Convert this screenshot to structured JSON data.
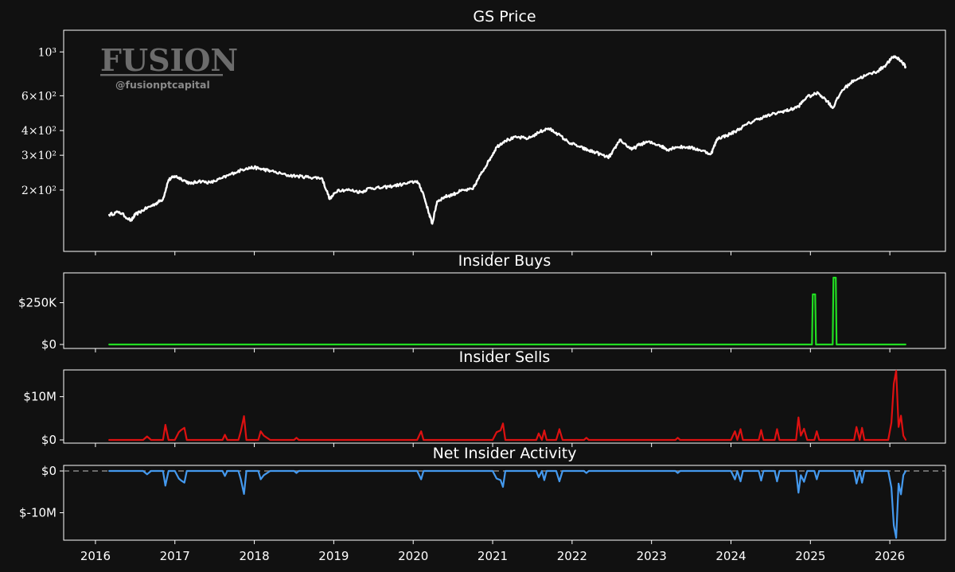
{
  "watermark": {
    "brand": "FUSION",
    "handle": "@fusionptcapital"
  },
  "chart_data": [
    {
      "type": "line",
      "title": "GS Price",
      "yscale": "log",
      "ylim": [
        120,
        1050
      ],
      "yticks": [
        {
          "value": 200,
          "label": "2×10²"
        },
        {
          "value": 300,
          "label": "3×10²"
        },
        {
          "value": 400,
          "label": "4×10²"
        },
        {
          "value": 600,
          "label": "6×10²"
        },
        {
          "value": 1000,
          "label": "10³"
        }
      ],
      "color": "#ffffff",
      "x": [
        2016.17,
        2016.3,
        2016.45,
        2016.5,
        2016.62,
        2016.75,
        2016.85,
        2016.92,
        2017.0,
        2017.08,
        2017.2,
        2017.3,
        2017.45,
        2017.6,
        2017.75,
        2017.9,
        2018.0,
        2018.1,
        2018.2,
        2018.4,
        2018.55,
        2018.7,
        2018.85,
        2018.95,
        2019.05,
        2019.2,
        2019.35,
        2019.45,
        2019.6,
        2019.75,
        2019.9,
        2020.05,
        2020.12,
        2020.2,
        2020.24,
        2020.3,
        2020.4,
        2020.5,
        2020.6,
        2020.75,
        2020.85,
        2020.95,
        2021.05,
        2021.15,
        2021.3,
        2021.45,
        2021.6,
        2021.7,
        2021.8,
        2021.95,
        2022.1,
        2022.2,
        2022.3,
        2022.45,
        2022.5,
        2022.6,
        2022.75,
        2022.85,
        2022.95,
        2023.1,
        2023.2,
        2023.3,
        2023.45,
        2023.6,
        2023.75,
        2023.83,
        2023.95,
        2024.05,
        2024.2,
        2024.35,
        2024.5,
        2024.65,
        2024.75,
        2024.85,
        2024.95,
        2025.1,
        2025.22,
        2025.28,
        2025.4,
        2025.55,
        2025.7,
        2025.85,
        2025.95,
        2026.05,
        2026.12,
        2026.2
      ],
      "values": [
        150,
        155,
        140,
        150,
        160,
        170,
        180,
        225,
        235,
        228,
        215,
        222,
        218,
        230,
        245,
        258,
        260,
        255,
        250,
        238,
        235,
        232,
        230,
        180,
        200,
        200,
        195,
        205,
        205,
        210,
        215,
        222,
        195,
        152,
        135,
        175,
        185,
        190,
        198,
        202,
        240,
        280,
        330,
        355,
        370,
        365,
        395,
        410,
        390,
        350,
        330,
        318,
        310,
        292,
        305,
        360,
        320,
        340,
        350,
        338,
        320,
        330,
        330,
        320,
        305,
        365,
        378,
        395,
        430,
        460,
        480,
        500,
        510,
        530,
        590,
        620,
        560,
        520,
        640,
        720,
        760,
        800,
        860,
        950,
        920,
        840
      ]
    },
    {
      "type": "line",
      "title": "Insider Buys",
      "ylim": [
        0,
        400000
      ],
      "yticks": [
        {
          "value": 0,
          "label": "$0"
        },
        {
          "value": 250000,
          "label": "$250K"
        }
      ],
      "color": "#22dd22",
      "x": [
        2016.17,
        2025.02,
        2025.03,
        2025.06,
        2025.07,
        2025.28,
        2025.29,
        2025.32,
        2025.33,
        2026.2
      ],
      "values": [
        0,
        0,
        300000,
        300000,
        0,
        0,
        400000,
        400000,
        0,
        0
      ]
    },
    {
      "type": "line",
      "title": "Insider Sells",
      "ylim": [
        0,
        16000000
      ],
      "yticks": [
        {
          "value": 0,
          "label": "$0"
        },
        {
          "value": 10000000,
          "label": "$10M"
        }
      ],
      "color": "#dd1111",
      "x": [
        2016.17,
        2016.6,
        2016.65,
        2016.7,
        2016.85,
        2016.88,
        2016.92,
        2017.0,
        2017.05,
        2017.08,
        2017.12,
        2017.15,
        2017.2,
        2017.6,
        2017.63,
        2017.66,
        2017.8,
        2017.83,
        2017.87,
        2017.9,
        2017.93,
        2018.05,
        2018.08,
        2018.12,
        2018.2,
        2018.5,
        2018.53,
        2018.56,
        2020.05,
        2020.1,
        2020.13,
        2021.0,
        2021.05,
        2021.1,
        2021.13,
        2021.16,
        2021.55,
        2021.58,
        2021.62,
        2021.65,
        2021.68,
        2021.8,
        2021.84,
        2021.88,
        2022.15,
        2022.18,
        2022.21,
        2023.3,
        2023.33,
        2023.36,
        2024.0,
        2024.05,
        2024.08,
        2024.12,
        2024.15,
        2024.35,
        2024.38,
        2024.41,
        2024.55,
        2024.58,
        2024.61,
        2024.82,
        2024.85,
        2024.88,
        2024.92,
        2024.96,
        2025.05,
        2025.08,
        2025.11,
        2025.5,
        2025.55,
        2025.58,
        2025.62,
        2025.65,
        2025.68,
        2025.72,
        2025.98,
        2026.02,
        2026.05,
        2026.08,
        2026.11,
        2026.14,
        2026.17,
        2026.2
      ],
      "values": [
        0,
        0,
        800000,
        0,
        0,
        3500000,
        0,
        0,
        1800000,
        2300000,
        2800000,
        0,
        0,
        0,
        1200000,
        0,
        0,
        2000000,
        5500000,
        0,
        0,
        0,
        2000000,
        1000000,
        0,
        0,
        500000,
        0,
        0,
        2000000,
        0,
        0,
        1800000,
        2200000,
        3800000,
        0,
        0,
        1500000,
        0,
        2200000,
        0,
        0,
        2500000,
        0,
        0,
        500000,
        0,
        0,
        500000,
        0,
        0,
        2000000,
        0,
        2500000,
        0,
        0,
        2300000,
        0,
        0,
        2500000,
        0,
        0,
        5200000,
        1000000,
        2600000,
        0,
        0,
        2000000,
        0,
        0,
        0,
        3000000,
        0,
        2800000,
        0,
        0,
        0,
        4000000,
        13000000,
        16000000,
        3000000,
        5600000,
        1000000,
        0
      ]
    },
    {
      "type": "line",
      "title": "Net Insider Activity",
      "ylim": [
        -16000000,
        0
      ],
      "yticks": [
        {
          "value": 0,
          "label": "$0"
        },
        {
          "value": -10000000,
          "label": "$-10M"
        }
      ],
      "color": "#4499ee",
      "zero_line": "dashed",
      "x": [
        2016.17,
        2016.6,
        2016.65,
        2016.7,
        2016.85,
        2016.88,
        2016.92,
        2017.0,
        2017.05,
        2017.08,
        2017.12,
        2017.15,
        2017.2,
        2017.6,
        2017.63,
        2017.66,
        2017.8,
        2017.83,
        2017.87,
        2017.9,
        2017.93,
        2018.05,
        2018.08,
        2018.12,
        2018.2,
        2018.5,
        2018.53,
        2018.56,
        2020.05,
        2020.1,
        2020.13,
        2021.0,
        2021.05,
        2021.1,
        2021.13,
        2021.16,
        2021.55,
        2021.58,
        2021.62,
        2021.65,
        2021.68,
        2021.8,
        2021.84,
        2021.88,
        2022.15,
        2022.18,
        2022.21,
        2023.3,
        2023.33,
        2023.36,
        2024.0,
        2024.05,
        2024.08,
        2024.12,
        2024.15,
        2024.35,
        2024.38,
        2024.41,
        2024.55,
        2024.58,
        2024.61,
        2024.82,
        2024.85,
        2024.88,
        2024.92,
        2024.96,
        2025.05,
        2025.08,
        2025.11,
        2025.5,
        2025.55,
        2025.58,
        2025.62,
        2025.65,
        2025.68,
        2025.72,
        2025.98,
        2026.02,
        2026.05,
        2026.08,
        2026.11,
        2026.14,
        2026.17,
        2026.2
      ],
      "values": [
        0,
        0,
        -800000,
        0,
        0,
        -3500000,
        0,
        0,
        -1800000,
        -2300000,
        -2800000,
        0,
        0,
        0,
        -1200000,
        0,
        0,
        -2000000,
        -5500000,
        0,
        0,
        0,
        -2000000,
        -1000000,
        0,
        0,
        -500000,
        0,
        0,
        -2000000,
        0,
        0,
        -1800000,
        -2200000,
        -3800000,
        0,
        0,
        -1500000,
        0,
        -2200000,
        0,
        0,
        -2500000,
        0,
        0,
        -500000,
        0,
        0,
        -500000,
        0,
        0,
        -2000000,
        0,
        -2500000,
        0,
        0,
        -2300000,
        0,
        0,
        -2500000,
        0,
        0,
        -5200000,
        -1000000,
        -2600000,
        0,
        0,
        -2000000,
        0,
        0,
        0,
        -3000000,
        0,
        -2800000,
        0,
        0,
        0,
        -4000000,
        -13000000,
        -16000000,
        -3000000,
        -5600000,
        -1000000,
        0
      ]
    }
  ],
  "xaxis": {
    "xlim": [
      2015.6,
      2026.7
    ],
    "ticks": [
      {
        "value": 2016,
        "label": "2016"
      },
      {
        "value": 2017,
        "label": "2017"
      },
      {
        "value": 2018,
        "label": "2018"
      },
      {
        "value": 2019,
        "label": "2019"
      },
      {
        "value": 2020,
        "label": "2020"
      },
      {
        "value": 2021,
        "label": "2021"
      },
      {
        "value": 2022,
        "label": "2022"
      },
      {
        "value": 2023,
        "label": "2023"
      },
      {
        "value": 2024,
        "label": "2024"
      },
      {
        "value": 2025,
        "label": "2025"
      },
      {
        "value": 2026,
        "label": "2026"
      }
    ]
  }
}
